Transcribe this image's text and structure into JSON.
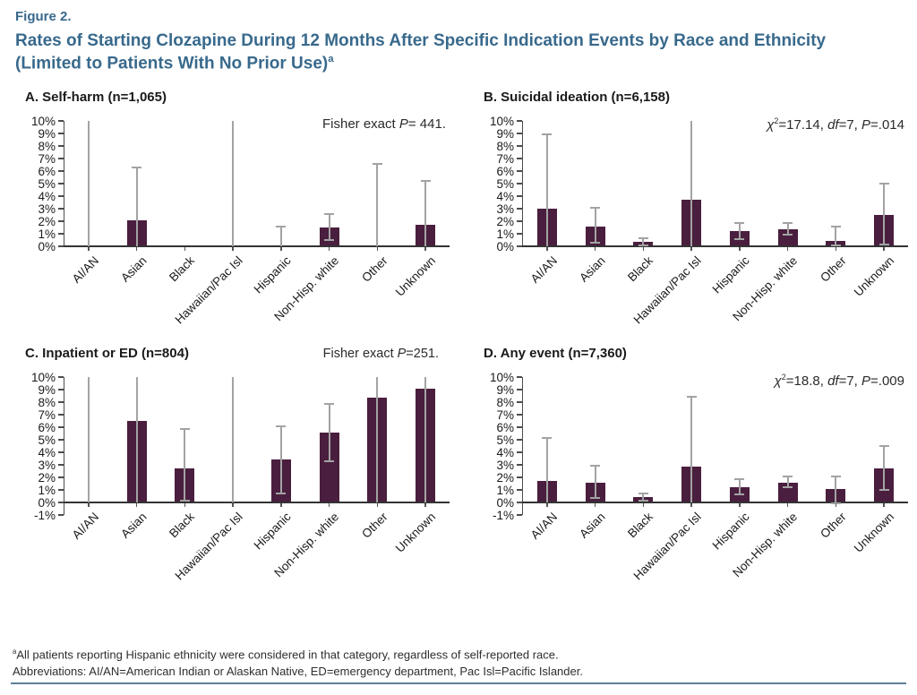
{
  "figure": {
    "label": "Figure 2.",
    "title": "Rates of Starting Clozapine During 12 Months After Specific Indication Events by Race and Ethnicity",
    "title_line2": "(Limited to Patients With No Prior Use)",
    "title_sup": "a"
  },
  "colors": {
    "bar": "#4a1e3e",
    "error_bar": "#a3a3a3",
    "title_blue": "#38698c",
    "axis": "#3c3c3c",
    "rule": "#5c8199"
  },
  "footnotes": {
    "sup": "a",
    "note": "All patients reporting Hispanic ethnicity were considered in that category, regardless of self-reported race.",
    "abbreviations": "Abbreviations: AI/AN=American Indian or Alaskan Native, ED=emergency department, Pac Isl=Pacific Islander."
  },
  "chart_data": [
    {
      "panel": "A",
      "type": "bar",
      "title": "A. Self-harm (n=1,065)",
      "stats_location": "plot",
      "stats": [
        {
          "t": "Fisher exact "
        },
        {
          "t": "P",
          "italic": true
        },
        {
          "t": "= 441."
        }
      ],
      "ylim": [
        0,
        10
      ],
      "yticks": [
        "10%",
        "9%",
        "8%",
        "7%",
        "6%",
        "5%",
        "4%",
        "3%",
        "2%",
        "1%",
        "0%"
      ],
      "categories": [
        "AI/AN",
        "Asian",
        "Black",
        "Hawaiian/Pac Isl",
        "Hispanic",
        "Non-Hisp. white",
        "Other",
        "Unknown"
      ],
      "values": [
        0,
        2.1,
        0,
        0,
        0,
        1.5,
        0,
        1.75
      ],
      "error_low": [
        0,
        0,
        0,
        0,
        0,
        0.5,
        0,
        0
      ],
      "error_high": [
        10,
        6.3,
        0,
        10,
        1.6,
        2.55,
        6.55,
        5.25
      ]
    },
    {
      "panel": "B",
      "type": "bar",
      "title": "B. Suicidal ideation (n=6,158)",
      "stats_location": "plot",
      "stats": [
        {
          "t": "χ",
          "italic": true
        },
        {
          "t": "2",
          "sup": true
        },
        {
          "t": "=17.14, "
        },
        {
          "t": "df",
          "italic": true
        },
        {
          "t": "=7, "
        },
        {
          "t": "P",
          "italic": true
        },
        {
          "t": "=.014"
        }
      ],
      "ylim": [
        0,
        10
      ],
      "yticks": [
        "10%",
        "9%",
        "8%",
        "7%",
        "6%",
        "5%",
        "4%",
        "3%",
        "2%",
        "1%",
        "0%"
      ],
      "categories": [
        "AI/AN",
        "Asian",
        "Black",
        "Hawaiian/Pac Isl",
        "Hispanic",
        "Non-Hisp. white",
        "Other",
        "Unknown"
      ],
      "values": [
        3.0,
        1.6,
        0.35,
        3.7,
        1.2,
        1.35,
        0.4,
        2.5
      ],
      "error_low": [
        0,
        0.3,
        0.1,
        0,
        0.55,
        0.95,
        0.05,
        0.15
      ],
      "error_high": [
        8.9,
        3.1,
        0.65,
        10,
        1.85,
        1.85,
        1.6,
        5.0
      ]
    },
    {
      "panel": "C",
      "type": "bar",
      "title": "C. Inpatient or ED (n=804)",
      "stats_location": "title",
      "stats": [
        {
          "t": "Fisher exact "
        },
        {
          "t": "P",
          "italic": true
        },
        {
          "t": "=251."
        }
      ],
      "ylim": [
        -1,
        10
      ],
      "yticks": [
        "10%",
        "9%",
        "8%",
        "7%",
        "6%",
        "5%",
        "4%",
        "3%",
        "2%",
        "1%",
        "0%",
        "-1%"
      ],
      "categories": [
        "AI/AN",
        "Asian",
        "Black",
        "Hawaiian/Pac Isl",
        "Hispanic",
        "Non-Hisp. white",
        "Other",
        "Unknown"
      ],
      "values": [
        0,
        6.5,
        2.75,
        0,
        3.4,
        5.55,
        8.35,
        9.1
      ],
      "error_low": [
        0,
        0,
        0.15,
        0,
        0.75,
        3.3,
        0,
        0
      ],
      "error_high": [
        10,
        10,
        5.85,
        10,
        6.1,
        7.85,
        10,
        10
      ]
    },
    {
      "panel": "D",
      "type": "bar",
      "title": "D. Any event (n=7,360)",
      "stats_location": "plot",
      "stats": [
        {
          "t": "χ",
          "italic": true
        },
        {
          "t": "2",
          "sup": true
        },
        {
          "t": "=18.8, "
        },
        {
          "t": "df",
          "italic": true
        },
        {
          "t": "=7, "
        },
        {
          "t": "P",
          "italic": true
        },
        {
          "t": "=.009"
        }
      ],
      "ylim": [
        -1,
        10
      ],
      "yticks": [
        "10%",
        "9%",
        "8%",
        "7%",
        "6%",
        "5%",
        "4%",
        "3%",
        "2%",
        "1%",
        "0%",
        "-1%"
      ],
      "categories": [
        "AI/AN",
        "Asian",
        "Black",
        "Hawaiian/Pac Isl",
        "Hispanic",
        "Non-Hisp. white",
        "Other",
        "Unknown"
      ],
      "values": [
        1.75,
        1.6,
        0.4,
        2.85,
        1.25,
        1.6,
        1.05,
        2.7
      ],
      "error_low": [
        0,
        0.35,
        0.15,
        0,
        0.65,
        1.2,
        -0.1,
        1.0
      ],
      "error_high": [
        5.15,
        2.95,
        0.7,
        8.4,
        1.85,
        2.05,
        2.1,
        4.5
      ]
    }
  ]
}
